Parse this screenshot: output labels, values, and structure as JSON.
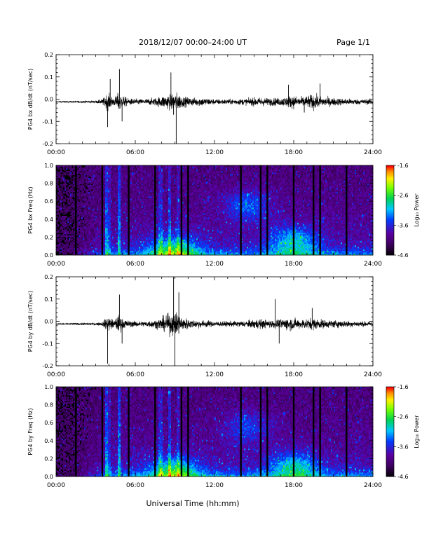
{
  "header": {
    "title": "2018/12/07   00:00–24:00 UT",
    "page_label": "Page 1/1"
  },
  "xlabel": "Universal Time (hh:mm)",
  "x_ticks": [
    "00:00",
    "06:00",
    "12:00",
    "18:00",
    "24:00"
  ],
  "colorbar": {
    "label": "Log₁₀ Power",
    "ticks": [
      "-1.6",
      "-2.6",
      "-3.6",
      "-4.6"
    ],
    "range": [
      -4.6,
      -1.6
    ]
  },
  "chart_data": [
    {
      "type": "line",
      "ylabel": "PG4 bx dB/dt (nT/sec)",
      "xlim": [
        0,
        24
      ],
      "ylim": [
        -0.2,
        0.2
      ],
      "y_ticks": [
        "0.2",
        "0.1",
        "0.0",
        "-0.1",
        "-0.2"
      ],
      "envelope": {
        "hours": [
          0,
          1,
          2,
          3,
          3.5,
          3.9,
          4.4,
          4.8,
          5.0,
          5.5,
          6.5,
          7.5,
          8.0,
          8.6,
          9.2,
          9.6,
          10.0,
          10.5,
          11.0,
          12,
          13,
          14.5,
          15.3,
          16,
          17,
          17.6,
          18.0,
          18.4,
          19.0,
          19.5,
          20.0,
          20.5,
          21.0,
          22,
          23,
          24
        ],
        "amplitude": [
          0.005,
          0.006,
          0.008,
          0.01,
          0.02,
          0.065,
          0.03,
          0.08,
          0.05,
          0.025,
          0.02,
          0.03,
          0.045,
          0.06,
          0.07,
          0.04,
          0.035,
          0.03,
          0.035,
          0.02,
          0.02,
          0.025,
          0.035,
          0.03,
          0.03,
          0.045,
          0.05,
          0.035,
          0.045,
          0.06,
          0.04,
          0.035,
          0.03,
          0.025,
          0.02,
          0.02
        ]
      },
      "spikes": [
        {
          "hour": 3.9,
          "value": -0.125
        },
        {
          "hour": 4.1,
          "value": 0.09
        },
        {
          "hour": 4.8,
          "value": 0.135
        },
        {
          "hour": 5.0,
          "value": -0.1
        },
        {
          "hour": 8.7,
          "value": 0.12
        },
        {
          "hour": 8.9,
          "value": -0.07
        },
        {
          "hour": 9.1,
          "value": -0.2
        },
        {
          "hour": 17.6,
          "value": 0.065
        },
        {
          "hour": 18.8,
          "value": -0.06
        },
        {
          "hour": 20.0,
          "value": 0.07
        }
      ]
    },
    {
      "type": "heatmap",
      "ylabel": "PG4 bx Freq (Hz)",
      "xlim": [
        0,
        24
      ],
      "ylim": [
        0,
        1.0
      ],
      "y_ticks": [
        "1.0",
        "0.8",
        "0.6",
        "0.4",
        "0.2",
        "0.0"
      ],
      "value_range": [
        -4.6,
        -1.6
      ],
      "gap_hours": [
        1.5,
        3.5,
        5.5,
        7.5,
        9.5,
        10.0,
        14.0,
        15.5,
        16.0,
        18.0,
        19.5,
        20.0,
        22.0
      ],
      "vertical_streaks": [
        {
          "hour": 3.8,
          "strength": 0.9
        },
        {
          "hour": 4.0,
          "strength": 0.5
        },
        {
          "hour": 4.8,
          "strength": 0.9
        },
        {
          "hour": 7.9,
          "strength": 0.6
        },
        {
          "hour": 8.6,
          "strength": 0.7
        },
        {
          "hour": 9.2,
          "strength": 0.5
        }
      ],
      "bright_regions": [
        {
          "hour": 9.0,
          "freq": 0.03,
          "strength": 1.0
        },
        {
          "hour": 14.5,
          "freq": 0.55,
          "strength": 0.6
        },
        {
          "hour": 18.0,
          "freq": 0.15,
          "strength": 0.8
        }
      ]
    },
    {
      "type": "line",
      "ylabel": "PG4 by dB/dt (nT/sec)",
      "xlim": [
        0,
        24
      ],
      "ylim": [
        -0.2,
        0.2
      ],
      "y_ticks": [
        "0.2",
        "0.1",
        "0.0",
        "-0.1",
        "-0.2"
      ],
      "envelope": {
        "hours": [
          0,
          1,
          2,
          3,
          3.5,
          3.9,
          4.4,
          4.8,
          5.0,
          5.5,
          6.5,
          7.5,
          8.0,
          8.6,
          9.2,
          9.6,
          10.0,
          10.5,
          11.0,
          12,
          13,
          14.5,
          15.3,
          16,
          17,
          17.6,
          18.0,
          18.4,
          19.0,
          19.5,
          20.0,
          20.5,
          21.0,
          22,
          23,
          24
        ],
        "amplitude": [
          0.005,
          0.006,
          0.008,
          0.01,
          0.015,
          0.06,
          0.03,
          0.075,
          0.04,
          0.025,
          0.02,
          0.03,
          0.05,
          0.08,
          0.09,
          0.05,
          0.04,
          0.03,
          0.03,
          0.02,
          0.02,
          0.025,
          0.04,
          0.03,
          0.035,
          0.05,
          0.045,
          0.035,
          0.04,
          0.045,
          0.035,
          0.03,
          0.03,
          0.025,
          0.02,
          0.02
        ]
      },
      "spikes": [
        {
          "hour": 3.9,
          "value": -0.19
        },
        {
          "hour": 4.8,
          "value": 0.12
        },
        {
          "hour": 5.0,
          "value": -0.1
        },
        {
          "hour": 8.9,
          "value": 0.2
        },
        {
          "hour": 9.0,
          "value": -0.2
        },
        {
          "hour": 9.3,
          "value": 0.13
        },
        {
          "hour": 16.6,
          "value": 0.1
        },
        {
          "hour": 16.9,
          "value": -0.1
        },
        {
          "hour": 19.4,
          "value": 0.06
        }
      ]
    },
    {
      "type": "heatmap",
      "ylabel": "PG4 by Freq (Hz)",
      "xlim": [
        0,
        24
      ],
      "ylim": [
        0,
        1.0
      ],
      "y_ticks": [
        "1.0",
        "0.8",
        "0.6",
        "0.4",
        "0.2",
        "0.0"
      ],
      "value_range": [
        -4.6,
        -1.6
      ],
      "gap_hours": [
        1.5,
        3.5,
        5.5,
        7.5,
        9.5,
        10.0,
        14.0,
        15.5,
        16.0,
        18.0,
        19.5,
        20.0,
        22.0
      ],
      "vertical_streaks": [
        {
          "hour": 3.8,
          "strength": 0.9
        },
        {
          "hour": 4.0,
          "strength": 0.5
        },
        {
          "hour": 4.8,
          "strength": 0.9
        },
        {
          "hour": 7.9,
          "strength": 0.6
        },
        {
          "hour": 8.6,
          "strength": 0.7
        },
        {
          "hour": 9.2,
          "strength": 0.5
        }
      ],
      "bright_regions": [
        {
          "hour": 9.0,
          "freq": 0.03,
          "strength": 1.0
        },
        {
          "hour": 14.5,
          "freq": 0.55,
          "strength": 0.5
        },
        {
          "hour": 18.0,
          "freq": 0.1,
          "strength": 0.8
        }
      ]
    }
  ]
}
